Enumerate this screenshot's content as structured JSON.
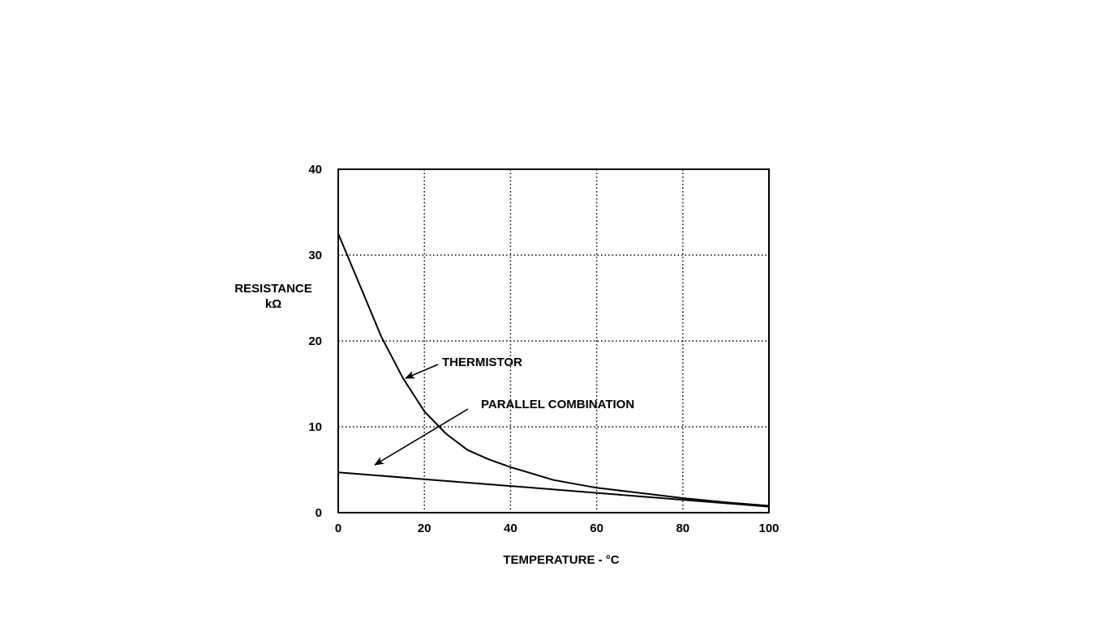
{
  "chart_data": {
    "type": "line",
    "title": "",
    "xlabel": "TEMPERATURE - °C",
    "ylabel": [
      "RESISTANCE",
      "kΩ"
    ],
    "xlim": [
      0,
      100
    ],
    "ylim": [
      0,
      40
    ],
    "xticks": [
      0,
      20,
      40,
      60,
      80,
      100
    ],
    "yticks": [
      0,
      10,
      20,
      30,
      40
    ],
    "grid": true,
    "series": [
      {
        "name": "THERMISTOR",
        "x": [
          0,
          5,
          10,
          15,
          20,
          25,
          30,
          35,
          40,
          50,
          60,
          70,
          80,
          90,
          100
        ],
        "y": [
          32.5,
          26.5,
          20.5,
          15.7,
          11.8,
          9.2,
          7.3,
          6.2,
          5.3,
          3.8,
          2.9,
          2.3,
          1.7,
          1.2,
          0.8
        ]
      },
      {
        "name": "PARALLEL COMBINATION",
        "x": [
          0,
          20,
          40,
          60,
          80,
          100
        ],
        "y": [
          4.7,
          3.9,
          3.1,
          2.3,
          1.5,
          0.7
        ]
      }
    ],
    "annotations": [
      {
        "text": "THERMISTOR",
        "series": "THERMISTOR"
      },
      {
        "text": "PARALLEL COMBINATION",
        "series": "PARALLEL COMBINATION"
      }
    ]
  }
}
